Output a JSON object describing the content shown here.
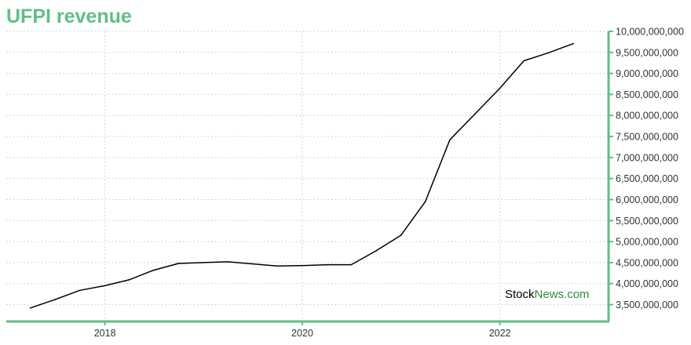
{
  "title": "UFPI revenue",
  "colors": {
    "accent": "#5fbf85",
    "grid": "#a8d9c9",
    "line": "#000000",
    "watermark_dark": "#000000",
    "watermark_green": "#2e8b3a"
  },
  "watermark": {
    "part1": "Stock",
    "part2": "News",
    "part3": ".com"
  },
  "chart_data": {
    "type": "line",
    "title": "UFPI revenue",
    "xlabel": "",
    "ylabel": "",
    "x_ticks": [
      "2018",
      "2020",
      "2022"
    ],
    "y_ticks": [
      "3,500,000,000",
      "4,000,000,000",
      "4,500,000,000",
      "5,000,000,000",
      "5,500,000,000",
      "6,000,000,000",
      "6,500,000,000",
      "7,000,000,000",
      "7,500,000,000",
      "8,000,000,000",
      "8,500,000,000",
      "9,000,000,000",
      "9,500,000,000",
      "10,000,000,000"
    ],
    "xlim": [
      "2017-01-01",
      "2023-02-07"
    ],
    "ylim": [
      3100000000,
      10000000000
    ],
    "grid": true,
    "y_axis_side": "right",
    "series": [
      {
        "points": [
          [
            "2017-03-31",
            3420000000
          ],
          [
            "2017-06-30",
            3620000000
          ],
          [
            "2017-09-30",
            3840000000
          ],
          [
            "2017-12-31",
            3950000000
          ],
          [
            "2018-03-31",
            4090000000
          ],
          [
            "2018-06-30",
            4320000000
          ],
          [
            "2018-09-30",
            4480000000
          ],
          [
            "2018-12-31",
            4500000000
          ],
          [
            "2019-03-31",
            4520000000
          ],
          [
            "2019-06-30",
            4470000000
          ],
          [
            "2019-09-30",
            4420000000
          ],
          [
            "2019-12-31",
            4430000000
          ],
          [
            "2020-03-31",
            4450000000
          ],
          [
            "2020-06-30",
            4450000000
          ],
          [
            "2020-09-30",
            4780000000
          ],
          [
            "2020-12-31",
            5150000000
          ],
          [
            "2021-03-31",
            5950000000
          ],
          [
            "2021-06-30",
            7420000000
          ],
          [
            "2021-09-30",
            8030000000
          ],
          [
            "2021-12-31",
            8640000000
          ],
          [
            "2022-03-31",
            9300000000
          ],
          [
            "2022-06-30",
            9490000000
          ],
          [
            "2022-09-30",
            9710000000
          ]
        ]
      }
    ]
  }
}
